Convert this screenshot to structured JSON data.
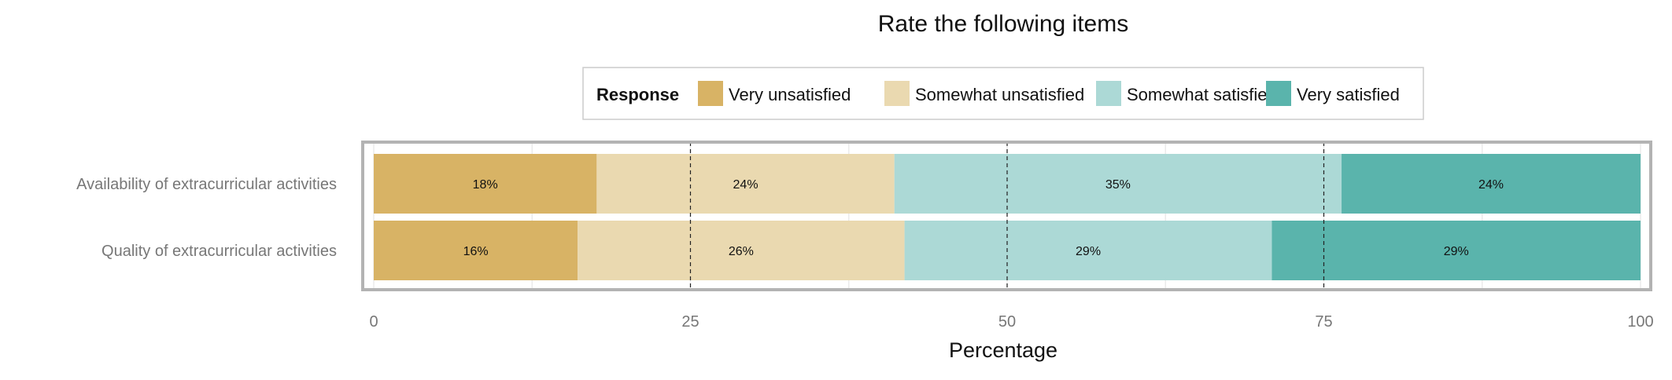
{
  "colors": {
    "Very unsatisfied": "#d8b365",
    "Somewhat unsatisfied": "#ead9b0",
    "Somewhat satisfied": "#acd9d6",
    "Very satisfied": "#5ab4ac",
    "panel_border": "#b3b3b3",
    "grid": "#ebebeb"
  },
  "chart_data": {
    "type": "bar",
    "orientation": "horizontal",
    "stacked": true,
    "title": "Rate the following items",
    "xlabel": "Percentage",
    "ylabel": "",
    "xlim": [
      0,
      100
    ],
    "x_ticks": [
      0,
      25,
      50,
      75,
      100
    ],
    "legend": {
      "title": "Response",
      "position": "top",
      "entries": [
        "Very unsatisfied",
        "Somewhat unsatisfied",
        "Somewhat satisfied",
        "Very satisfied"
      ]
    },
    "categories": [
      "Availability of extracurricular activities",
      "Quality of extracurricular activities"
    ],
    "series": [
      {
        "name": "Very unsatisfied",
        "values": [
          17.6,
          16.1
        ]
      },
      {
        "name": "Somewhat unsatisfied",
        "values": [
          23.5,
          25.8
        ]
      },
      {
        "name": "Somewhat satisfied",
        "values": [
          35.3,
          29.0
        ]
      },
      {
        "name": "Very satisfied",
        "values": [
          23.6,
          29.1
        ]
      }
    ],
    "data_labels": [
      [
        "18%",
        "24%",
        "35%",
        "24%"
      ],
      [
        "16%",
        "26%",
        "29%",
        "29%"
      ]
    ],
    "reference_lines": [
      25,
      50,
      75
    ],
    "grid": true
  }
}
